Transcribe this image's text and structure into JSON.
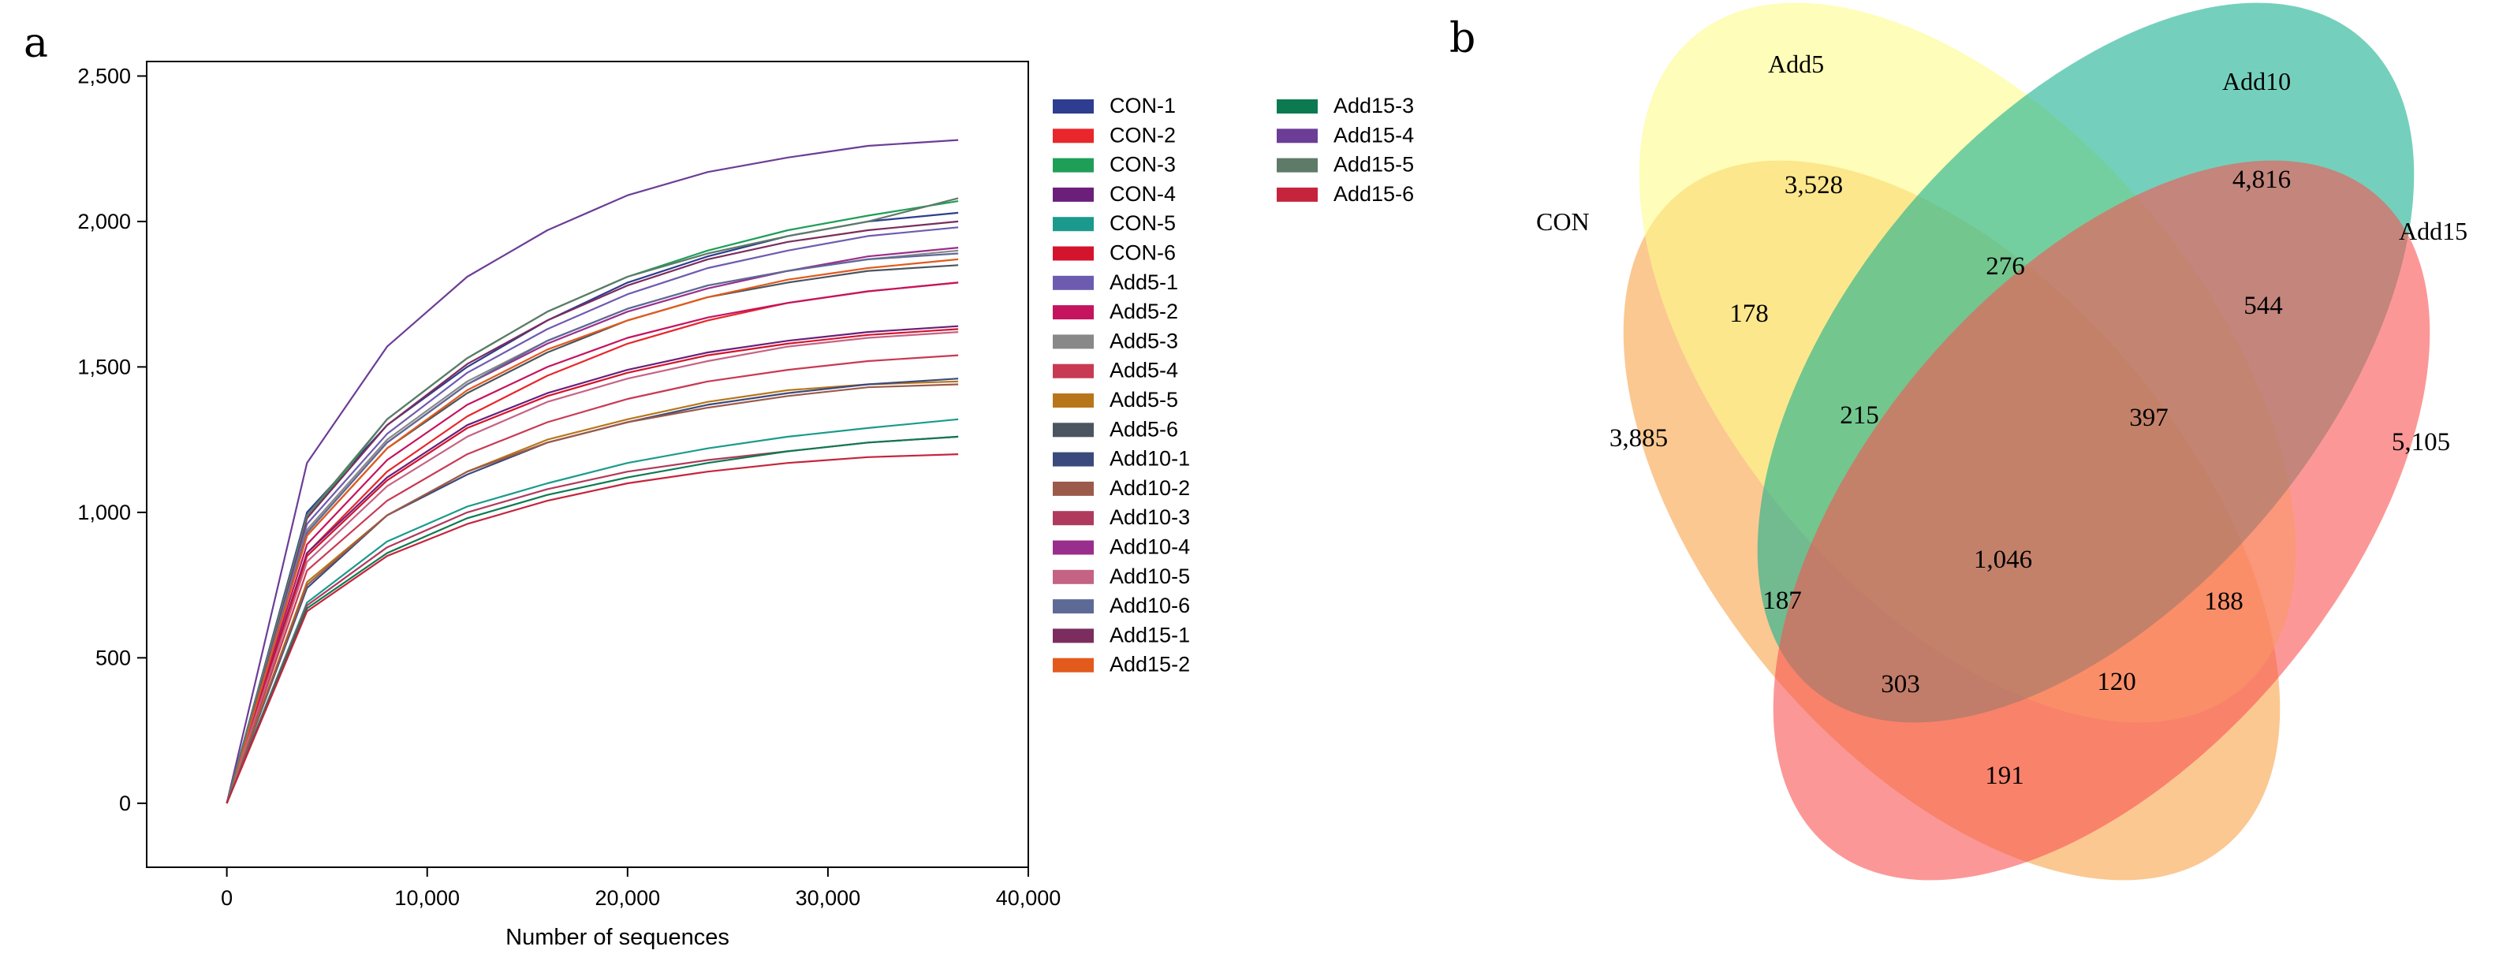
{
  "panels": {
    "a_label": "a",
    "b_label": "b"
  },
  "chart_data": [
    {
      "type": "line",
      "title": "",
      "xlabel": "Number of sequences",
      "ylabel": "",
      "xlim": [
        -4000,
        40000
      ],
      "ylim": [
        -220,
        2550
      ],
      "xticks": [
        0,
        10000,
        20000,
        30000,
        40000
      ],
      "xtick_labels": [
        "0",
        "10,000",
        "20,000",
        "30,000",
        "40,000"
      ],
      "yticks": [
        0,
        500,
        1000,
        1500,
        2000,
        2500
      ],
      "ytick_labels": [
        "0",
        "500",
        "1,000",
        "1,500",
        "2,000",
        "2,500"
      ],
      "grid": false,
      "legend_position": "right",
      "x": [
        0,
        4000,
        8000,
        12000,
        16000,
        20000,
        24000,
        28000,
        32000,
        36500
      ],
      "series": [
        {
          "name": "CON-1",
          "color": "#2e3d8f",
          "values": [
            0,
            1000,
            1300,
            1500,
            1660,
            1790,
            1880,
            1950,
            2000,
            2030
          ]
        },
        {
          "name": "CON-2",
          "color": "#e8262b",
          "values": [
            0,
            860,
            1140,
            1330,
            1470,
            1580,
            1660,
            1720,
            1760,
            1790
          ]
        },
        {
          "name": "CON-3",
          "color": "#1f9e58",
          "values": [
            0,
            980,
            1320,
            1530,
            1690,
            1810,
            1900,
            1970,
            2020,
            2070
          ]
        },
        {
          "name": "CON-4",
          "color": "#6b1f7a",
          "values": [
            0,
            860,
            1120,
            1300,
            1410,
            1490,
            1550,
            1590,
            1620,
            1640
          ]
        },
        {
          "name": "CON-5",
          "color": "#1a9a8c",
          "values": [
            0,
            690,
            900,
            1020,
            1100,
            1170,
            1220,
            1260,
            1290,
            1320
          ]
        },
        {
          "name": "CON-6",
          "color": "#d4142d",
          "values": [
            0,
            850,
            1110,
            1290,
            1400,
            1480,
            1540,
            1580,
            1610,
            1630
          ]
        },
        {
          "name": "Add5-1",
          "color": "#6d5bb0",
          "values": [
            0,
            960,
            1270,
            1480,
            1630,
            1750,
            1840,
            1900,
            1950,
            1980
          ]
        },
        {
          "name": "Add5-2",
          "color": "#c4145f",
          "values": [
            0,
            890,
            1180,
            1370,
            1500,
            1600,
            1670,
            1720,
            1760,
            1790
          ]
        },
        {
          "name": "Add5-3",
          "color": "#888888",
          "values": [
            0,
            940,
            1250,
            1450,
            1590,
            1700,
            1780,
            1830,
            1870,
            1900
          ]
        },
        {
          "name": "Add5-4",
          "color": "#c83a53",
          "values": [
            0,
            800,
            1040,
            1200,
            1310,
            1390,
            1450,
            1490,
            1520,
            1540
          ]
        },
        {
          "name": "Add5-5",
          "color": "#b8761a",
          "values": [
            0,
            760,
            990,
            1140,
            1250,
            1320,
            1380,
            1420,
            1440,
            1450
          ]
        },
        {
          "name": "Add5-6",
          "color": "#4a5560",
          "values": [
            0,
            920,
            1220,
            1410,
            1550,
            1660,
            1740,
            1790,
            1830,
            1850
          ]
        },
        {
          "name": "Add10-1",
          "color": "#3b4a7c",
          "values": [
            0,
            740,
            990,
            1130,
            1240,
            1310,
            1370,
            1410,
            1440,
            1460
          ]
        },
        {
          "name": "Add10-2",
          "color": "#9b5a4a",
          "values": [
            0,
            750,
            990,
            1140,
            1240,
            1310,
            1360,
            1400,
            1430,
            1440
          ]
        },
        {
          "name": "Add10-3",
          "color": "#b03a5e",
          "values": [
            0,
            680,
            880,
            1000,
            1080,
            1140,
            1180,
            1210,
            1240,
            1260
          ]
        },
        {
          "name": "Add10-4",
          "color": "#9a2e8c",
          "values": [
            0,
            930,
            1240,
            1440,
            1580,
            1690,
            1770,
            1830,
            1880,
            1910
          ]
        },
        {
          "name": "Add10-5",
          "color": "#c46384",
          "values": [
            0,
            830,
            1090,
            1260,
            1380,
            1460,
            1520,
            1570,
            1600,
            1620
          ]
        },
        {
          "name": "Add10-6",
          "color": "#5e6a96",
          "values": [
            0,
            930,
            1240,
            1440,
            1590,
            1700,
            1780,
            1830,
            1870,
            1890
          ]
        },
        {
          "name": "Add15-1",
          "color": "#7b2d5e",
          "values": [
            0,
            980,
            1300,
            1510,
            1660,
            1780,
            1870,
            1930,
            1970,
            2000
          ]
        },
        {
          "name": "Add15-2",
          "color": "#e25a1c",
          "values": [
            0,
            920,
            1220,
            1420,
            1560,
            1660,
            1740,
            1800,
            1840,
            1870
          ]
        },
        {
          "name": "Add15-3",
          "color": "#0c7a50",
          "values": [
            0,
            670,
            860,
            980,
            1060,
            1120,
            1170,
            1210,
            1240,
            1260
          ]
        },
        {
          "name": "Add15-4",
          "color": "#6c3d96",
          "values": [
            0,
            1170,
            1570,
            1810,
            1970,
            2090,
            2170,
            2220,
            2260,
            2280
          ]
        },
        {
          "name": "Add15-5",
          "color": "#5e7a68",
          "values": [
            0,
            990,
            1320,
            1530,
            1690,
            1810,
            1890,
            1950,
            2000,
            2080
          ]
        },
        {
          "name": "Add15-6",
          "color": "#c6243c",
          "values": [
            0,
            660,
            850,
            960,
            1040,
            1100,
            1140,
            1170,
            1190,
            1200
          ]
        }
      ]
    },
    {
      "type": "venn",
      "sets": [
        {
          "name": "CON",
          "color": "#f9a34a"
        },
        {
          "name": "Add5",
          "color": "#fdfb8a"
        },
        {
          "name": "Add10",
          "color": "#18b08f"
        },
        {
          "name": "Add15",
          "color": "#f95452"
        }
      ],
      "regions": [
        {
          "sets": [
            "Add5"
          ],
          "count": "3,528"
        },
        {
          "sets": [
            "Add10"
          ],
          "count": "4,816"
        },
        {
          "sets": [
            "Add5",
            "Add10"
          ],
          "count": "276"
        },
        {
          "sets": [
            "CON",
            "Add5"
          ],
          "count": "178"
        },
        {
          "sets": [
            "Add10",
            "Add15"
          ],
          "count": "544"
        },
        {
          "sets": [
            "CON"
          ],
          "count": "3,885"
        },
        {
          "sets": [
            "CON",
            "Add5",
            "Add10"
          ],
          "count": "215"
        },
        {
          "sets": [
            "Add5",
            "Add10",
            "Add15"
          ],
          "count": "397"
        },
        {
          "sets": [
            "Add15"
          ],
          "count": "5,105"
        },
        {
          "sets": [
            "CON",
            "Add5",
            "Add10",
            "Add15"
          ],
          "count": "1,046"
        },
        {
          "sets": [
            "CON",
            "Add10"
          ],
          "count": "187"
        },
        {
          "sets": [
            "Add5",
            "Add15"
          ],
          "count": "188"
        },
        {
          "sets": [
            "CON",
            "Add10",
            "Add15"
          ],
          "count": "303"
        },
        {
          "sets": [
            "CON",
            "Add5",
            "Add15"
          ],
          "count": "120"
        },
        {
          "sets": [
            "CON",
            "Add15"
          ],
          "count": "191"
        }
      ]
    }
  ]
}
